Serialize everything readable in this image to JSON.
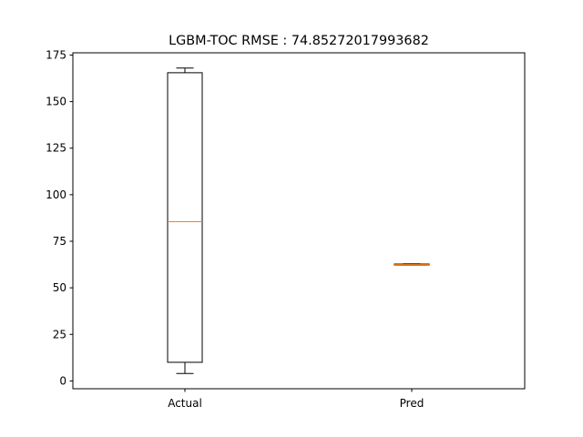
{
  "chart_data": {
    "type": "box",
    "title": "LGBM-TOC RMSE : 74.85272017993682",
    "xlabel": "",
    "ylabel": "",
    "categories": [
      "Actual",
      "Pred"
    ],
    "boxes": [
      {
        "name": "Actual",
        "whisker_low": 4,
        "q1": 10,
        "median": 85.5,
        "q3": 165.5,
        "whisker_high": 168
      },
      {
        "name": "Pred",
        "whisker_low": 62.4,
        "q1": 62.5,
        "median": 62.6,
        "q3": 62.8,
        "whisker_high": 62.9
      }
    ],
    "ylim": [
      -4.2,
      176.2
    ],
    "yticks": [
      0,
      25,
      50,
      75,
      100,
      125,
      150,
      175
    ],
    "ytick_labels": [
      "0",
      "25",
      "50",
      "75",
      "100",
      "125",
      "150",
      "175"
    ],
    "grid": false,
    "colors": {
      "box": "#000000",
      "median": "#ff7f0e",
      "background": "#ffffff"
    }
  }
}
